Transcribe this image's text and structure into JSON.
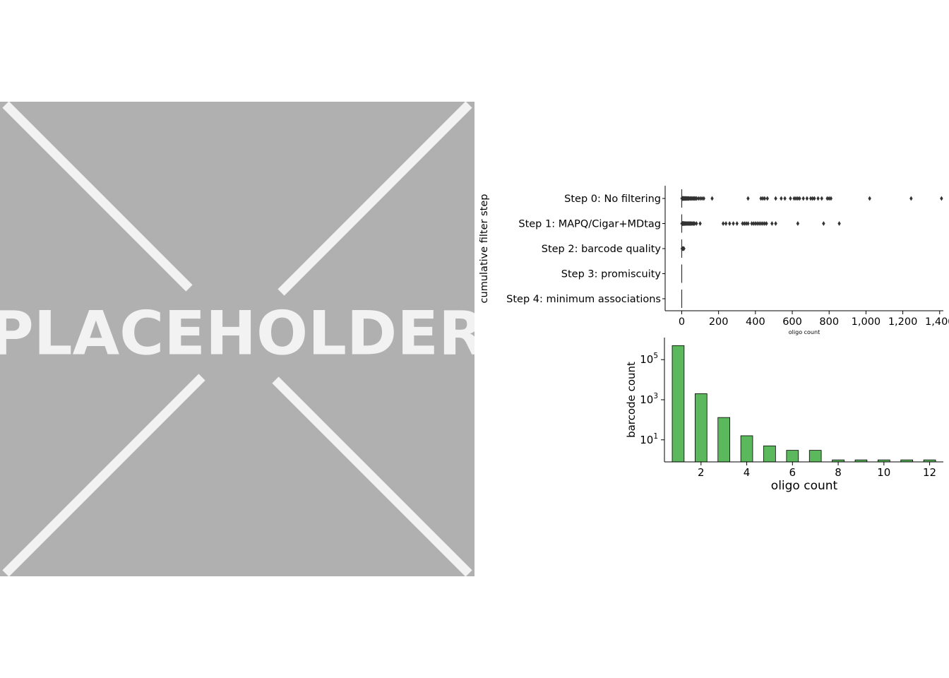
{
  "placeholder": {
    "label": "PLACEHOLDER"
  },
  "chart_data": [
    {
      "type": "box",
      "orientation": "horizontal",
      "ylabel": "cumulative filter step",
      "xlabel": "oligo count",
      "xlim": [
        -90,
        1420
      ],
      "xticks": [
        0,
        200,
        400,
        600,
        800,
        1000,
        1200,
        1400
      ],
      "xtick_labels": [
        "0",
        "200",
        "400",
        "600",
        "800",
        "1,000",
        "1,200",
        "1,400"
      ],
      "categories": [
        "Step 0: No filtering",
        "Step 1: MAPQ/Cigar+MDtag",
        "Step 2: barcode quality",
        "Step 3: promiscuity",
        "Step 4: minimum associations"
      ],
      "box_color": "#333333",
      "outliers": [
        [
          1,
          2,
          3,
          4,
          5,
          6,
          7,
          8,
          9,
          10,
          12,
          14,
          16,
          18,
          20,
          22,
          25,
          28,
          31,
          34,
          37,
          40,
          45,
          50,
          55,
          60,
          65,
          70,
          75,
          80,
          90,
          100,
          110,
          120,
          165,
          360,
          430,
          440,
          450,
          465,
          510,
          540,
          560,
          590,
          610,
          620,
          630,
          640,
          660,
          680,
          700,
          710,
          720,
          740,
          760,
          790,
          800,
          810,
          1020,
          1245,
          1410
        ],
        [
          1,
          2,
          3,
          4,
          5,
          6,
          7,
          8,
          9,
          10,
          12,
          14,
          17,
          20,
          23,
          26,
          30,
          34,
          38,
          42,
          46,
          50,
          55,
          60,
          65,
          70,
          80,
          100,
          225,
          240,
          260,
          280,
          300,
          330,
          340,
          350,
          360,
          380,
          390,
          400,
          410,
          420,
          430,
          440,
          450,
          460,
          490,
          510,
          630,
          770,
          855
        ],
        [
          2,
          4,
          6,
          8,
          10,
          12
        ],
        [],
        []
      ]
    },
    {
      "type": "bar",
      "xlabel": "oligo count",
      "ylabel": "barcode count",
      "yscale": "log",
      "ytick_labels": [
        "10",
        "10",
        "10"
      ],
      "ytick_exponents": [
        "1",
        "3",
        "5"
      ],
      "xticks": [
        2,
        4,
        6,
        8,
        10,
        12
      ],
      "xtick_labels": [
        "2",
        "4",
        "6",
        "8",
        "10",
        "12"
      ],
      "bar_color": "#5cb85c",
      "categories": [
        1,
        2,
        3,
        4,
        5,
        6,
        7,
        8,
        9,
        10,
        11,
        12
      ],
      "values": [
        500000,
        2000,
        130,
        16,
        5,
        3,
        3,
        1,
        1,
        1,
        1,
        1
      ]
    }
  ]
}
